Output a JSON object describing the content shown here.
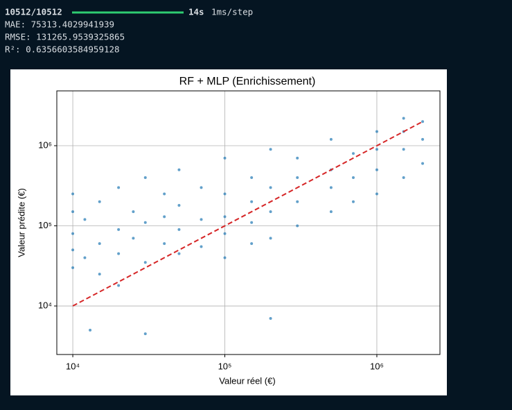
{
  "console": {
    "progress": "10512/10512",
    "time": "14s",
    "step": "1ms/step",
    "lines": [
      "MAE: 75313.4029941939",
      "RMSE: 131265.9539325865",
      "R²: 0.6356603584959128"
    ]
  },
  "chart_data": {
    "type": "scatter",
    "title": "RF + MLP (Enrichissement)",
    "x_label": "Valeur réel (€)",
    "y_label": "Valeur prédite (€)",
    "log_x": true,
    "log_y": true,
    "grid": true,
    "xlim": [
      7850,
      2600000
    ],
    "ylim": [
      2480,
      4830000
    ],
    "xticks": [
      {
        "value": 10000,
        "label": "10⁴"
      },
      {
        "value": 100000,
        "label": "10⁵"
      },
      {
        "value": 1000000,
        "label": "10⁶"
      }
    ],
    "yticks": [
      {
        "value": 10000,
        "label": "10⁴"
      },
      {
        "value": 100000,
        "label": "10⁵"
      },
      {
        "value": 1000000,
        "label": "10⁶"
      }
    ],
    "series": [
      {
        "color": "#1f77b4",
        "type": "scatter",
        "x": [
          10000,
          10000,
          10000,
          10000,
          10000,
          12000,
          12000,
          15000,
          15000,
          15000,
          20000,
          20000,
          20000,
          20000,
          25000,
          25000,
          30000,
          30000,
          30000,
          40000,
          40000,
          40000,
          50000,
          50000,
          50000,
          50000,
          70000,
          70000,
          70000,
          100000,
          100000,
          100000,
          100000,
          100000,
          150000,
          150000,
          150000,
          150000,
          200000,
          200000,
          200000,
          200000,
          300000,
          300000,
          300000,
          300000,
          500000,
          500000,
          500000,
          500000,
          700000,
          700000,
          700000,
          1000000,
          1000000,
          1000000,
          1000000,
          1500000,
          1500000,
          1500000,
          1500000,
          2000000,
          2000000,
          2000000,
          13000,
          30000,
          200000
        ],
        "values": [
          30000,
          80000,
          150000,
          250000,
          50000,
          40000,
          120000,
          60000,
          200000,
          25000,
          45000,
          90000,
          300000,
          18000,
          70000,
          150000,
          35000,
          110000,
          400000,
          60000,
          130000,
          250000,
          45000,
          90000,
          180000,
          500000,
          55000,
          120000,
          300000,
          40000,
          80000,
          130000,
          250000,
          700000,
          60000,
          110000,
          200000,
          400000,
          70000,
          150000,
          300000,
          900000,
          100000,
          200000,
          400000,
          700000,
          150000,
          300000,
          500000,
          1200000,
          200000,
          400000,
          800000,
          250000,
          500000,
          900000,
          1500000,
          400000,
          900000,
          1500000,
          2200000,
          600000,
          1200000,
          2000000,
          5000,
          4500,
          7000
        ]
      },
      {
        "color": "#d62728",
        "type": "line",
        "dashed": true,
        "x": [
          10000,
          2000000
        ],
        "values": [
          10000,
          2000000
        ]
      }
    ]
  }
}
